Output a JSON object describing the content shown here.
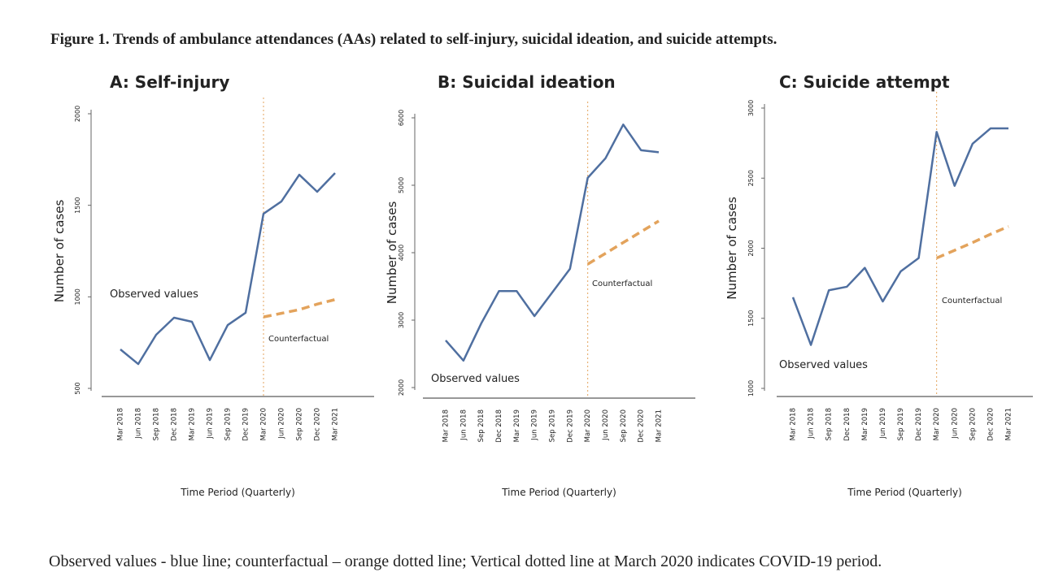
{
  "figure_title": "Figure 1. Trends of ambulance attendances (AAs) related to self-injury, suicidal ideation, and suicide attempts.",
  "caption": "Observed values - blue line; counterfactual – orange dotted line; Vertical dotted line at March 2020 indicates COVID-19 period.",
  "chart_data": [
    {
      "type": "line",
      "title": "A: Self-injury",
      "xlabel": "Time Period (Quarterly)",
      "ylabel": "Number of cases",
      "categories": [
        "Mar 2018",
        "Jun 2018",
        "Sep 2018",
        "Dec 2018",
        "Mar 2019",
        "Jun 2019",
        "Sep 2019",
        "Dec 2019",
        "Mar 2020",
        "Jun 2020",
        "Sep 2020",
        "Dec 2020",
        "Mar 2021"
      ],
      "series": [
        {
          "name": "Observed values",
          "color": "#4f6fa0",
          "values": [
            713,
            633,
            793,
            886,
            864,
            655,
            846,
            913,
            1454,
            1521,
            1667,
            1574,
            1676
          ]
        },
        {
          "name": "Counterfactual",
          "color": "#e3a35c",
          "dashed": true,
          "values": [
            null,
            null,
            null,
            null,
            null,
            null,
            null,
            null,
            890,
            910,
            930,
            960,
            985
          ]
        }
      ],
      "ylim": [
        500,
        2000
      ],
      "yticks": [
        500,
        1000,
        1500,
        2000
      ],
      "vline_at": "Mar 2020"
    },
    {
      "type": "line",
      "title": "B: Suicidal ideation",
      "xlabel": "Time Period (Quarterly)",
      "ylabel": "Number of cases",
      "categories": [
        "Mar 2018",
        "Jun 2018",
        "Sep 2018",
        "Dec 2018",
        "Mar 2019",
        "Jun 2019",
        "Sep 2019",
        "Dec 2019",
        "Mar 2020",
        "Jun 2020",
        "Sep 2020",
        "Dec 2020",
        "Mar 2021"
      ],
      "series": [
        {
          "name": "Observed values",
          "color": "#4f6fa0",
          "values": [
            2700,
            2400,
            2950,
            3430,
            3430,
            3060,
            3410,
            3760,
            5110,
            5400,
            5900,
            5520,
            5490
          ]
        },
        {
          "name": "Counterfactual",
          "color": "#e3a35c",
          "dashed": true,
          "values": [
            null,
            null,
            null,
            null,
            null,
            null,
            null,
            null,
            3830,
            3990,
            4150,
            4310,
            4470
          ]
        }
      ],
      "ylim": [
        2000,
        6000
      ],
      "yticks": [
        2000,
        3000,
        4000,
        5000,
        6000
      ],
      "vline_at": "Mar 2020"
    },
    {
      "type": "line",
      "title": "C: Suicide attempt",
      "xlabel": "Time Period (Quarterly)",
      "ylabel": "Number of cases",
      "categories": [
        "Mar 2018",
        "Jun 2018",
        "Sep 2018",
        "Dec 2018",
        "Mar 2019",
        "Jun 2019",
        "Sep 2019",
        "Dec 2019",
        "Mar 2020",
        "Jun 2020",
        "Sep 2020",
        "Dec 2020",
        "Mar 2021"
      ],
      "series": [
        {
          "name": "Observed values",
          "color": "#4f6fa0",
          "values": [
            1650,
            1310,
            1700,
            1725,
            1860,
            1620,
            1835,
            1930,
            2830,
            2445,
            2745,
            2855,
            2855
          ]
        },
        {
          "name": "Counterfactual",
          "color": "#e3a35c",
          "dashed": true,
          "values": [
            null,
            null,
            null,
            null,
            null,
            null,
            null,
            null,
            1930,
            1985,
            2040,
            2100,
            2155
          ]
        }
      ],
      "ylim": [
        1000,
        3000
      ],
      "yticks": [
        1000,
        1500,
        2000,
        2500,
        3000
      ],
      "vline_at": "Mar 2020"
    }
  ]
}
